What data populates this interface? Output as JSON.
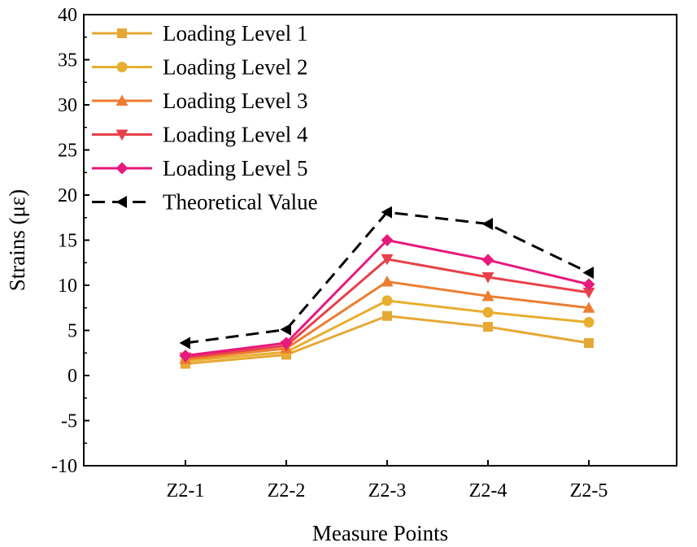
{
  "chart_data": {
    "type": "line",
    "title": "",
    "xlabel": "Measure Points",
    "ylabel": "Strains (με)",
    "categories": [
      "Z2-1",
      "Z2-2",
      "Z2-3",
      "Z2-4",
      "Z2-5"
    ],
    "ylim": [
      -10,
      40
    ],
    "yticks": [
      -10,
      -5,
      0,
      5,
      10,
      15,
      20,
      25,
      30,
      35,
      40
    ],
    "grid": false,
    "legend_position": "top-left",
    "series": [
      {
        "name": "Loading Level 1",
        "color": "#E6A834",
        "marker": "square",
        "dashed": false,
        "values": [
          1.3,
          2.3,
          6.6,
          5.4,
          3.6
        ]
      },
      {
        "name": "Loading Level 2",
        "color": "#E8AE2E",
        "marker": "circle",
        "dashed": false,
        "values": [
          1.6,
          2.6,
          8.3,
          7.0,
          5.9
        ]
      },
      {
        "name": "Loading Level 3",
        "color": "#ED7D31",
        "marker": "triangle-up",
        "dashed": false,
        "values": [
          1.8,
          3.0,
          10.4,
          8.8,
          7.5
        ]
      },
      {
        "name": "Loading Level 4",
        "color": "#E8404A",
        "marker": "triangle-down",
        "dashed": false,
        "values": [
          2.0,
          3.3,
          12.9,
          10.9,
          9.2
        ]
      },
      {
        "name": "Loading Level 5",
        "color": "#E6197D",
        "marker": "diamond",
        "dashed": false,
        "values": [
          2.2,
          3.6,
          15.0,
          12.8,
          10.1
        ]
      },
      {
        "name": "Theoretical Value",
        "color": "#000000",
        "marker": "triangle-left",
        "dashed": true,
        "values": [
          3.6,
          5.1,
          18.1,
          16.8,
          11.4
        ]
      }
    ]
  }
}
